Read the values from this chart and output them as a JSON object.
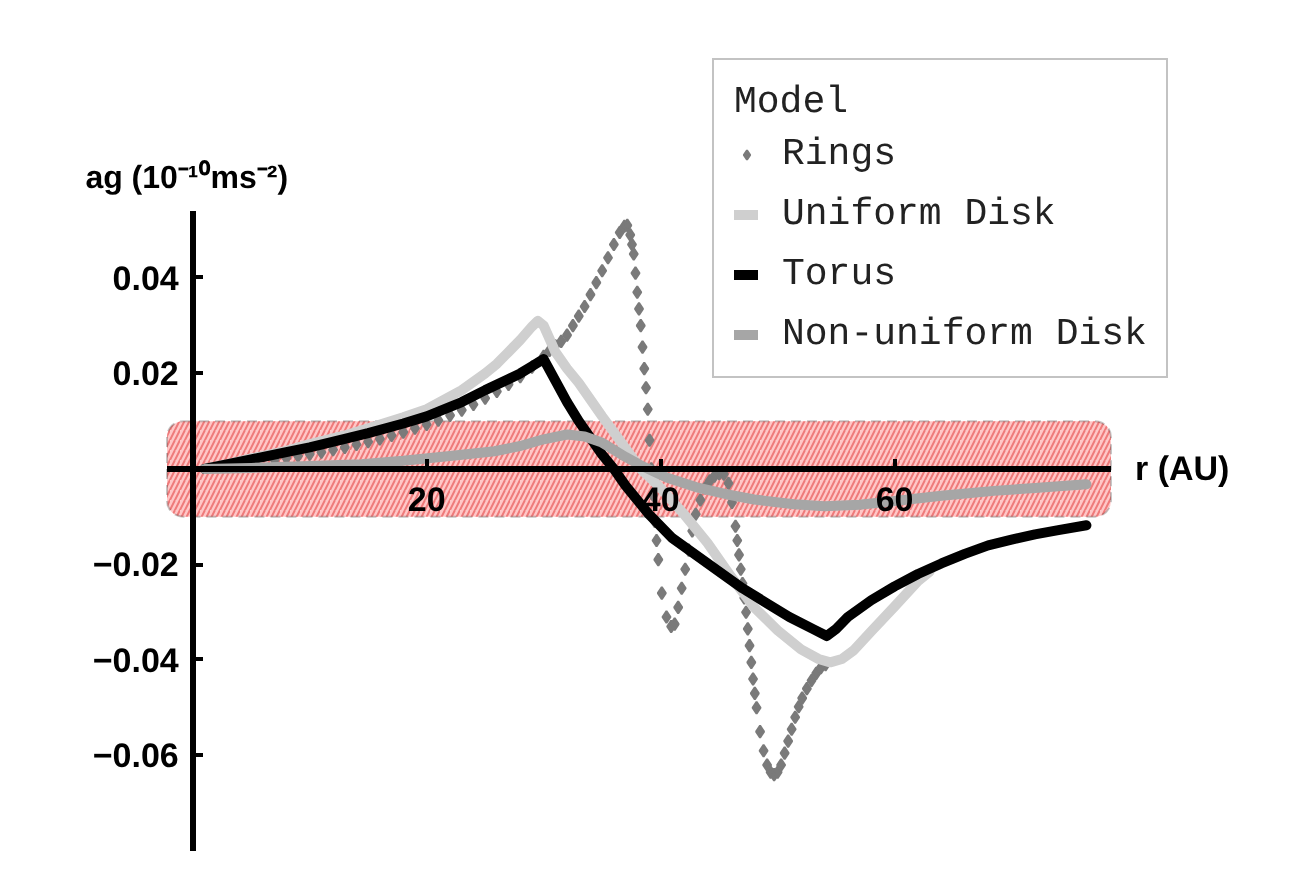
{
  "chart_data": {
    "type": "line",
    "xlabel": "r (AU)",
    "ylabel": "ag (10⁻¹⁰ms⁻²)",
    "legend_title": "Model",
    "legend": "top right",
    "xlim": [
      -2.2,
      78.5
    ],
    "ylim": [
      -0.08,
      0.054
    ],
    "xticks": [
      20,
      40,
      60
    ],
    "yticks": [
      -0.06,
      -0.04,
      -0.02,
      0.02,
      0.04
    ],
    "bands": [
      {
        "axis": "y",
        "from": -0.01,
        "to": 0.01,
        "color": "#ff9999"
      }
    ],
    "series": [
      {
        "name": "Rings",
        "type": "scatter",
        "marker": "diamond",
        "color": "#7a7a7a",
        "x": [
          7,
          8,
          9,
          10,
          11,
          12,
          13,
          14,
          15,
          16,
          17,
          18,
          19,
          20,
          21,
          22,
          23,
          24,
          25,
          26,
          27,
          28,
          29,
          30,
          30.5,
          31,
          31.5,
          32,
          32.5,
          33,
          33.5,
          34,
          34.5,
          35,
          35.5,
          36,
          36.5,
          36.9,
          37.15,
          37.4,
          37.55,
          37.7,
          37.85,
          38.0,
          38.15,
          38.3,
          38.45,
          38.6,
          38.75,
          38.9,
          39.05,
          39.2,
          39.35,
          39.5,
          39.65,
          39.8,
          40.1,
          40.5,
          40.9,
          41.2,
          41.5,
          41.8,
          42.1,
          42.4,
          42.7,
          43,
          43.4,
          43.8,
          44.2,
          44.6,
          45,
          45.4,
          45.8,
          46.1,
          46.4,
          46.55,
          46.7,
          46.85,
          47,
          47.15,
          47.3,
          47.45,
          47.6,
          47.75,
          47.9,
          48.05,
          48.2,
          48.5,
          48.8,
          49.1,
          49.4,
          49.7,
          50,
          50.3,
          50.6,
          50.9,
          51.2,
          51.5,
          51.8,
          52.1,
          52.5,
          52.9,
          53.3,
          53.7,
          54.1
        ],
        "values": [
          0.0019,
          0.0023,
          0.0027,
          0.0031,
          0.0035,
          0.004,
          0.0045,
          0.0051,
          0.0057,
          0.0063,
          0.007,
          0.0077,
          0.0085,
          0.0093,
          0.0102,
          0.0112,
          0.0123,
          0.0135,
          0.0148,
          0.0162,
          0.0177,
          0.0193,
          0.0213,
          0.0236,
          0.0248,
          0.0258,
          0.0267,
          0.028,
          0.03,
          0.032,
          0.034,
          0.0365,
          0.039,
          0.0415,
          0.0442,
          0.047,
          0.0495,
          0.0508,
          0.051,
          0.049,
          0.047,
          0.045,
          0.041,
          0.037,
          0.0335,
          0.03,
          0.0255,
          0.021,
          0.017,
          0.0125,
          0.006,
          0.0,
          -0.0055,
          -0.011,
          -0.015,
          -0.019,
          -0.026,
          -0.031,
          -0.033,
          -0.0325,
          -0.029,
          -0.025,
          -0.021,
          -0.017,
          -0.013,
          -0.0095,
          -0.0065,
          -0.004,
          -0.0025,
          -0.0015,
          -0.001,
          -0.0011,
          -0.003,
          -0.007,
          -0.012,
          -0.015,
          -0.018,
          -0.021,
          -0.024,
          -0.027,
          -0.03,
          -0.0335,
          -0.037,
          -0.0405,
          -0.044,
          -0.047,
          -0.05,
          -0.055,
          -0.059,
          -0.062,
          -0.0635,
          -0.064,
          -0.0635,
          -0.062,
          -0.0595,
          -0.057,
          -0.0545,
          -0.052,
          -0.0498,
          -0.048,
          -0.046,
          -0.0443,
          -0.0428,
          -0.0416,
          -0.041
        ]
      },
      {
        "name": "Uniform Disk",
        "color": "#cfcfcf",
        "x": [
          1,
          3,
          5,
          8,
          10,
          13,
          15,
          18,
          20,
          23,
          25,
          26,
          27,
          28,
          29,
          29.5,
          30,
          31,
          32,
          33,
          34,
          35,
          36,
          37,
          38.3,
          40,
          42,
          44,
          46,
          48,
          50,
          52,
          53.5,
          54.5,
          55.5,
          56.5,
          58,
          60,
          62,
          63
        ],
        "values": [
          0,
          0.001,
          0.0022,
          0.0038,
          0.0052,
          0.007,
          0.0085,
          0.0108,
          0.0125,
          0.0165,
          0.02,
          0.022,
          0.0245,
          0.027,
          0.0298,
          0.031,
          0.03,
          0.0245,
          0.021,
          0.018,
          0.0145,
          0.011,
          0.0077,
          0.0043,
          0.0,
          -0.004,
          -0.0095,
          -0.0155,
          -0.0225,
          -0.029,
          -0.0338,
          -0.0378,
          -0.0398,
          -0.0405,
          -0.0398,
          -0.038,
          -0.034,
          -0.0288,
          -0.0235,
          -0.0215
        ]
      },
      {
        "name": "Torus",
        "color": "#000000",
        "x": [
          1,
          3,
          5,
          8,
          10,
          13,
          15,
          18,
          20,
          23,
          25,
          27,
          28,
          29,
          30,
          31,
          32,
          33,
          34,
          35,
          36,
          37,
          39,
          41,
          43,
          45,
          47,
          49,
          51,
          53,
          54.2,
          55,
          56,
          58,
          60,
          62,
          64,
          66,
          68,
          70,
          72,
          74,
          76.4
        ],
        "values": [
          0,
          0.001,
          0.002,
          0.0035,
          0.0045,
          0.0063,
          0.0075,
          0.0095,
          0.011,
          0.014,
          0.0165,
          0.0188,
          0.02,
          0.0215,
          0.023,
          0.0185,
          0.014,
          0.01,
          0.0065,
          0.003,
          0.0,
          -0.0035,
          -0.0095,
          -0.0145,
          -0.018,
          -0.0215,
          -0.025,
          -0.028,
          -0.031,
          -0.0335,
          -0.035,
          -0.0335,
          -0.031,
          -0.0275,
          -0.0246,
          -0.022,
          -0.0198,
          -0.0178,
          -0.016,
          -0.0148,
          -0.0137,
          -0.0128,
          -0.0118
        ]
      },
      {
        "name": "Non-uniform Disk",
        "color": "#a6a6a6",
        "x": [
          1,
          5,
          10,
          14.4,
          18,
          22,
          25.8,
          28,
          30,
          32,
          33.5,
          35,
          37,
          38.5,
          40.5,
          43,
          45.6,
          48,
          51.4,
          54,
          57,
          60,
          64,
          68.5,
          72,
          76.4
        ],
        "values": [
          0,
          0.0002,
          0.0006,
          0.001,
          0.0017,
          0.0027,
          0.0037,
          0.0048,
          0.0062,
          0.0072,
          0.0068,
          0.0055,
          0.0025,
          0.0005,
          -0.0018,
          -0.0038,
          -0.0053,
          -0.0064,
          -0.0074,
          -0.0078,
          -0.0075,
          -0.0067,
          -0.0056,
          -0.0046,
          -0.004,
          -0.0032
        ]
      }
    ]
  }
}
